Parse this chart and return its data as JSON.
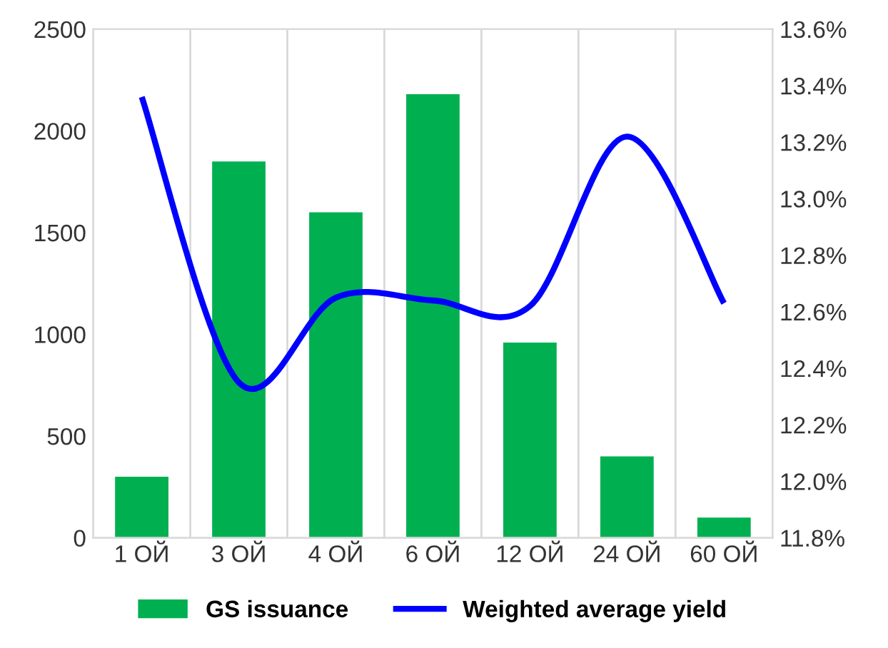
{
  "chart_data": {
    "type": "bar",
    "categories": [
      "1 ОЙ",
      "3 ОЙ",
      "4 ОЙ",
      "6 ОЙ",
      "12 ОЙ",
      "24 ОЙ",
      "60 ОЙ"
    ],
    "series": [
      {
        "name": "GS issuance",
        "color": "#00b050",
        "values": [
          300,
          1850,
          1600,
          2180,
          960,
          400,
          100
        ]
      },
      {
        "name": "Weighted average yield",
        "type": "line",
        "axis": "y2",
        "color": "#0000ff",
        "values": [
          13.36,
          12.35,
          12.65,
          12.64,
          12.62,
          13.22,
          12.63
        ]
      }
    ],
    "ylim": [
      0,
      2500
    ],
    "yticks": [
      0,
      500,
      1000,
      1500,
      2000,
      2500
    ],
    "y2lim": [
      11.8,
      13.6
    ],
    "y2ticks": [
      {
        "value": 11.8,
        "label": "11.8%"
      },
      {
        "value": 12.0,
        "label": "12.0%"
      },
      {
        "value": 12.2,
        "label": "12.2%"
      },
      {
        "value": 12.4,
        "label": "12.4%"
      },
      {
        "value": 12.6,
        "label": "12.6%"
      },
      {
        "value": 12.8,
        "label": "12.8%"
      },
      {
        "value": 13.0,
        "label": "13.0%"
      },
      {
        "value": 13.2,
        "label": "13.2%"
      },
      {
        "value": 13.4,
        "label": "13.4%"
      },
      {
        "value": 13.6,
        "label": "13.6%"
      }
    ],
    "grid": "x",
    "legend": "bottom"
  }
}
